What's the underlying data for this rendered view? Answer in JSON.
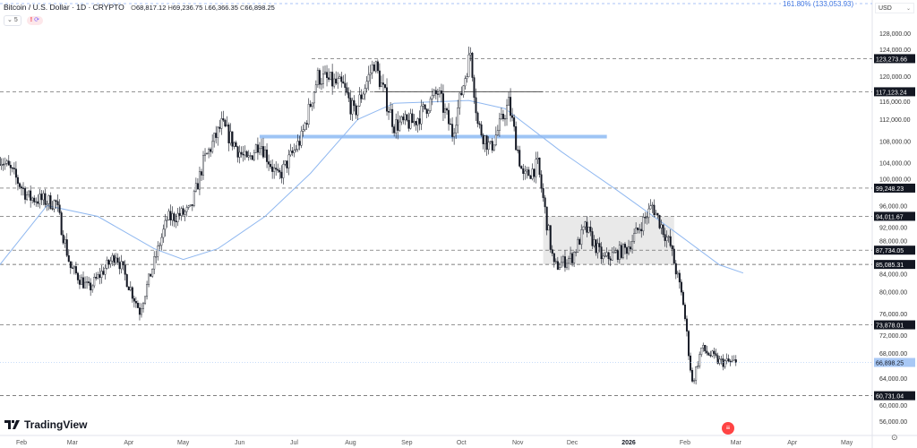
{
  "header": {
    "symbol": "Bitcoin / U.S. Dollar · 1D · CRYPTO",
    "open_label": "O",
    "open": "68,817.12",
    "high_label": "H",
    "high": "69,236.75",
    "low_label": "L",
    "low": "66,366.35",
    "close_label": "C",
    "close": "66,898.25",
    "indicator_count": "5",
    "alert_icon": "!"
  },
  "fib_label": "161.80% (133,053.93)",
  "currency": "USD",
  "brand": "TradingView",
  "colors": {
    "up": "#ffffff",
    "down": "#131722",
    "ma": "#90b8f0",
    "zone": "#9ec4f5",
    "box": "#e3e3e3",
    "current": "#a8c8f5"
  },
  "chart_data": {
    "type": "candlestick",
    "y_ticks": [
      "128,000.00",
      "124,000.00",
      "120,000.00",
      "116,000.00",
      "112,000.00",
      "108,000.00",
      "104,000.00",
      "100,000.00",
      "96,000.00",
      "92,000.00",
      "88,000.00",
      "84,000.00",
      "80,000.00",
      "76,000.00",
      "72,000.00",
      "68,000.00",
      "64,000.00",
      "60,000.00",
      "56,000.00"
    ],
    "y_tick_values": [
      128000,
      124000,
      120000,
      116000,
      112000,
      108000,
      104000,
      100000,
      96000,
      92000,
      88000,
      84000,
      80000,
      76000,
      72000,
      68000,
      64000,
      60000,
      56000
    ],
    "x_ticks": [
      {
        "label": "Feb",
        "date": "2025-02-01"
      },
      {
        "label": "Mar",
        "date": "2025-03-01"
      },
      {
        "label": "Apr",
        "date": "2025-04-01"
      },
      {
        "label": "May",
        "date": "2025-05-01"
      },
      {
        "label": "Jun",
        "date": "2025-06-01"
      },
      {
        "label": "Jul",
        "date": "2025-07-01"
      },
      {
        "label": "Aug",
        "date": "2025-08-01"
      },
      {
        "label": "Sep",
        "date": "2025-09-01"
      },
      {
        "label": "Oct",
        "date": "2025-10-01"
      },
      {
        "label": "Nov",
        "date": "2025-11-01"
      },
      {
        "label": "Dec",
        "date": "2025-12-01"
      },
      {
        "label": "2026",
        "date": "2026-01-01"
      },
      {
        "label": "Feb",
        "date": "2026-02-01"
      },
      {
        "label": "Mar",
        "date": "2026-03-01"
      },
      {
        "label": "Apr",
        "date": "2026-04-01"
      },
      {
        "label": "May",
        "date": "2026-05-01"
      }
    ],
    "close_path": [
      [
        "2025-01-20",
        105000
      ],
      [
        "2025-01-27",
        102000
      ],
      [
        "2025-02-05",
        97500
      ],
      [
        "2025-02-20",
        96500
      ],
      [
        "2025-02-28",
        84500
      ],
      [
        "2025-03-10",
        80500
      ],
      [
        "2025-03-25",
        87000
      ],
      [
        "2025-04-07",
        76500
      ],
      [
        "2025-04-22",
        93500
      ],
      [
        "2025-05-05",
        95000
      ],
      [
        "2025-05-12",
        104000
      ],
      [
        "2025-05-22",
        111000
      ],
      [
        "2025-06-05",
        104000
      ],
      [
        "2025-06-12",
        108000
      ],
      [
        "2025-06-22",
        101000
      ],
      [
        "2025-07-05",
        108500
      ],
      [
        "2025-07-14",
        120000
      ],
      [
        "2025-07-28",
        118000
      ],
      [
        "2025-08-03",
        113000
      ],
      [
        "2025-08-14",
        122500
      ],
      [
        "2025-08-25",
        111000
      ],
      [
        "2025-09-05",
        111500
      ],
      [
        "2025-09-18",
        117000
      ],
      [
        "2025-09-26",
        109500
      ],
      [
        "2025-10-06",
        124500
      ],
      [
        "2025-10-10",
        111000
      ],
      [
        "2025-10-17",
        106500
      ],
      [
        "2025-10-27",
        115000
      ],
      [
        "2025-11-04",
        101000
      ],
      [
        "2025-11-12",
        103500
      ],
      [
        "2025-11-21",
        84500
      ],
      [
        "2025-12-01",
        86500
      ],
      [
        "2025-12-08",
        92000
      ],
      [
        "2025-12-18",
        86000
      ],
      [
        "2025-12-31",
        88000
      ],
      [
        "2026-01-14",
        96000
      ],
      [
        "2026-01-24",
        88500
      ],
      [
        "2026-01-31",
        78000
      ],
      [
        "2026-02-05",
        63000
      ],
      [
        "2026-02-10",
        69500
      ],
      [
        "2026-02-20",
        67000
      ],
      [
        "2026-03-01",
        66898
      ]
    ],
    "moving_average": [
      [
        "2025-01-20",
        85000
      ],
      [
        "2025-02-15",
        96000
      ],
      [
        "2025-03-15",
        94000
      ],
      [
        "2025-04-15",
        88000
      ],
      [
        "2025-05-01",
        86000
      ],
      [
        "2025-05-20",
        88000
      ],
      [
        "2025-06-15",
        94000
      ],
      [
        "2025-07-10",
        102000
      ],
      [
        "2025-08-05",
        112000
      ],
      [
        "2025-08-25",
        115000
      ],
      [
        "2025-10-05",
        115500
      ],
      [
        "2025-10-25",
        114000
      ],
      [
        "2025-11-25",
        106000
      ],
      [
        "2025-12-25",
        99000
      ],
      [
        "2026-01-25",
        91500
      ],
      [
        "2026-02-20",
        85000
      ],
      [
        "2026-03-05",
        83500
      ]
    ],
    "levels": [
      "123,273.66",
      "117,123.24",
      "99,248.23",
      "94,011.67",
      "87,734.05",
      "85,085.31",
      "73,878.01",
      "60,731.04"
    ],
    "level_values": [
      123273.66,
      117123.24,
      99248.23,
      94011.67,
      87734.05,
      85085.31,
      73878.01,
      60731.04
    ],
    "current_price": "66,898.25",
    "current_value": 66898.25,
    "zone_line": {
      "value": 108800,
      "from": "2025-06-12",
      "to": "2025-12-20"
    },
    "range_line": {
      "value": 117123.24,
      "from": "2025-08-14",
      "to": "2025-11-15"
    },
    "box": {
      "top": 94011.67,
      "bottom": 85085.31,
      "from": "2025-11-15",
      "to": "2026-01-26"
    }
  }
}
